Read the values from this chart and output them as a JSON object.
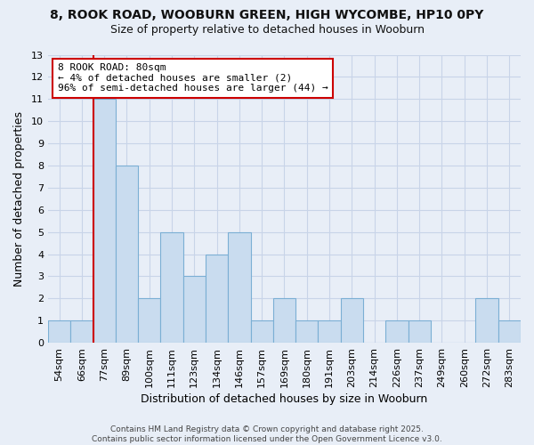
{
  "title1": "8, ROOK ROAD, WOOBURN GREEN, HIGH WYCOMBE, HP10 0PY",
  "title2": "Size of property relative to detached houses in Wooburn",
  "xlabel": "Distribution of detached houses by size in Wooburn",
  "ylabel": "Number of detached properties",
  "categories": [
    "54sqm",
    "66sqm",
    "77sqm",
    "89sqm",
    "100sqm",
    "111sqm",
    "123sqm",
    "134sqm",
    "146sqm",
    "157sqm",
    "169sqm",
    "180sqm",
    "191sqm",
    "203sqm",
    "214sqm",
    "226sqm",
    "237sqm",
    "249sqm",
    "260sqm",
    "272sqm",
    "283sqm"
  ],
  "values": [
    1,
    1,
    11,
    8,
    2,
    5,
    3,
    4,
    5,
    1,
    2,
    1,
    1,
    2,
    0,
    1,
    1,
    0,
    0,
    2,
    1
  ],
  "bar_color": "#c9dcef",
  "bar_edge_color": "#7bafd4",
  "subject_line_color": "#cc0000",
  "subject_line_index": 2,
  "annotation_text": "8 ROOK ROAD: 80sqm\n← 4% of detached houses are smaller (2)\n96% of semi-detached houses are larger (44) →",
  "annotation_box_color": "#ffffff",
  "annotation_box_edge": "#cc0000",
  "ylim": [
    0,
    13
  ],
  "yticks": [
    0,
    1,
    2,
    3,
    4,
    5,
    6,
    7,
    8,
    9,
    10,
    11,
    12,
    13
  ],
  "background_color": "#e8eef7",
  "plot_bg_color": "#e8eef7",
  "grid_color": "#c8d4e8",
  "footer": "Contains HM Land Registry data © Crown copyright and database right 2025.\nContains public sector information licensed under the Open Government Licence v3.0.",
  "title1_fontsize": 10,
  "title2_fontsize": 9,
  "xlabel_fontsize": 9,
  "ylabel_fontsize": 9,
  "tick_fontsize": 8,
  "footer_fontsize": 6.5
}
